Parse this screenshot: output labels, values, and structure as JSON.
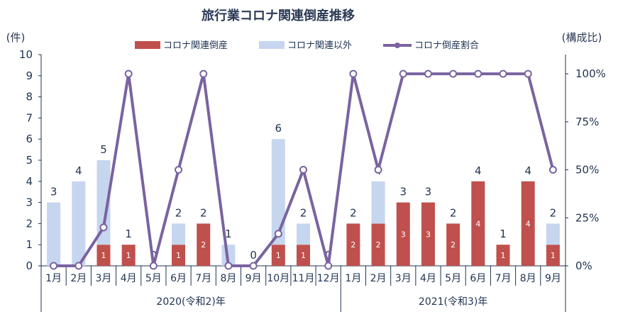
{
  "chart_data": {
    "type": "bar",
    "title": "旅行業コロナ関連倒産推移",
    "ylabel_left": "(件)",
    "ylabel_right": "(構成比)",
    "ylim_left": [
      0,
      10
    ],
    "yticks_left": [
      "0",
      "1",
      "2",
      "3",
      "4",
      "5",
      "6",
      "7",
      "8",
      "9",
      "10"
    ],
    "ylim_right": [
      0,
      110
    ],
    "yticks_right": [
      "0%",
      "25%",
      "50%",
      "75%",
      "100%"
    ],
    "categories": [
      "1月",
      "2月",
      "3月",
      "4月",
      "5月",
      "6月",
      "7月",
      "8月",
      "9月",
      "10月",
      "11月",
      "12月",
      "1月",
      "2月",
      "3月",
      "4月",
      "5月",
      "6月",
      "7月",
      "8月",
      "9月"
    ],
    "year_groups": [
      {
        "label": "2020(令和2)年",
        "start": 0,
        "end": 11
      },
      {
        "label": "2021(令和3)年",
        "start": 12,
        "end": 20
      }
    ],
    "series": [
      {
        "name": "コロナ関連倒産",
        "kind": "bar",
        "color": "#c0504d",
        "values": [
          0,
          0,
          1,
          1,
          0,
          1,
          2,
          0,
          0,
          1,
          1,
          0,
          2,
          2,
          3,
          3,
          2,
          4,
          1,
          4,
          1
        ]
      },
      {
        "name": "コロナ関連以外",
        "kind": "bar",
        "color": "#c6d6ef",
        "values": [
          3,
          4,
          4,
          0,
          0,
          1,
          0,
          1,
          0,
          5,
          1,
          0,
          0,
          2,
          0,
          0,
          0,
          0,
          0,
          0,
          1
        ]
      },
      {
        "name": "コロナ倒産割合",
        "kind": "line",
        "color": "#7a63a0",
        "values": [
          0,
          0,
          20,
          100,
          0,
          50,
          100,
          0,
          0,
          16.7,
          50,
          0,
          100,
          50,
          100,
          100,
          100,
          100,
          100,
          100,
          50
        ]
      }
    ],
    "totals": [
      "3",
      "4",
      "5",
      "1",
      "0",
      "2",
      "2",
      "1",
      "0",
      "6",
      "2",
      "0",
      "2",
      "4",
      "3",
      "3",
      "2",
      "4",
      "1",
      "4",
      "2"
    ],
    "inbar_labels": [
      "",
      "",
      "1",
      "1",
      "",
      "1",
      "2",
      "",
      "",
      "1",
      "1",
      "",
      "2",
      "2",
      "3",
      "3",
      "2",
      "4",
      "1",
      "4",
      "1"
    ],
    "legend_position": "top",
    "grid": false
  }
}
